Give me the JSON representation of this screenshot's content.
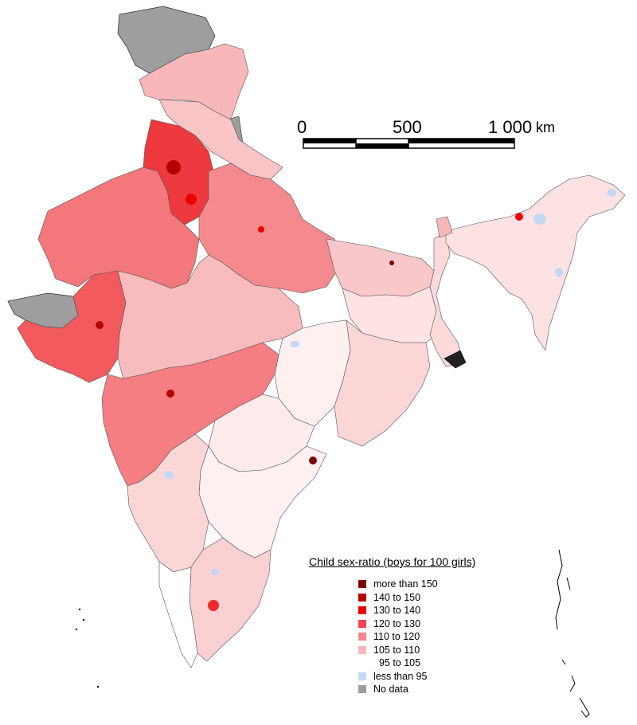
{
  "map": {
    "scale_bar": {
      "labels": [
        "0",
        "500",
        "1 000"
      ],
      "unit": "km"
    },
    "legend": {
      "title": "Child sex-ratio (boys for 100 girls)",
      "items": [
        {
          "label": "more than 150",
          "color": "#7a0000"
        },
        {
          "label": "140 to 150",
          "color": "#b50000"
        },
        {
          "label": "130 to 140",
          "color": "#ee0000"
        },
        {
          "label": "120 to 130",
          "color": "#f4474a"
        },
        {
          "label": "110 to 120",
          "color": "#f5868a"
        },
        {
          "label": "105 to 110",
          "color": "#f8b7b9"
        },
        {
          "label": "  95 to 105",
          "color": "#ffffff"
        },
        {
          "label": "less than 95",
          "color": "#c4d7f5"
        },
        {
          "label": "No data",
          "color": "#9e9e9e"
        }
      ]
    }
  }
}
